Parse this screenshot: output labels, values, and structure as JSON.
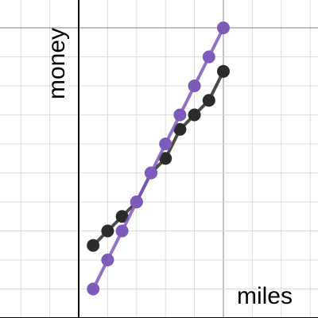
{
  "chart_data": {
    "type": "line",
    "x_label": "miles",
    "y_label": "money",
    "xlim": [
      -2.72,
      8.27
    ],
    "ylim": [
      0,
      10.96
    ],
    "xticks": [
      -2,
      -1,
      0,
      1,
      2,
      3,
      4,
      5,
      6,
      7,
      8
    ],
    "yticks": [
      1,
      2,
      3,
      4,
      5,
      6,
      7,
      8,
      9,
      10
    ],
    "grid": true,
    "x": [
      0.5,
      1,
      1.5,
      2,
      2.5,
      3,
      3.5,
      4,
      4.5,
      5
    ],
    "series": [
      {
        "color": "#2b2b2b",
        "values": [
          2.5,
          3,
          3.5,
          4,
          5,
          5.5,
          6.5,
          7,
          7.5,
          8.5
        ]
      },
      {
        "color": "#7c5bbb",
        "values": [
          1,
          2,
          3,
          4,
          5,
          6,
          7,
          8,
          9,
          10
        ]
      }
    ]
  }
}
